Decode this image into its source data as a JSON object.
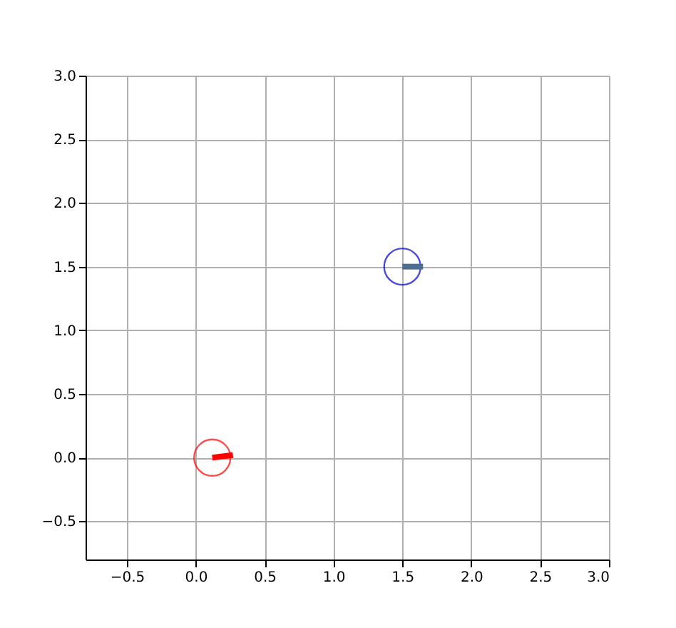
{
  "chart_data": {
    "type": "scatter",
    "series": [
      {
        "color": "#ff0000",
        "x": [
          0.12
        ],
        "values": [
          0.0
        ],
        "marker": "circle"
      },
      {
        "color": "#0000cc",
        "x": [
          1.5
        ],
        "values": [
          1.5
        ],
        "marker": "circle"
      },
      {
        "type": "line",
        "color": "#ff0000",
        "x": [
          0.12,
          0.27
        ],
        "values": [
          0.0,
          0.02
        ],
        "marker": "none"
      },
      {
        "type": "line",
        "color": "#4f6d8f",
        "x": [
          1.5,
          1.65
        ],
        "values": [
          1.5,
          1.5
        ],
        "marker": "none"
      }
    ],
    "xlim": [
      -0.8,
      3.0
    ],
    "ylim": [
      -0.8,
      3.0
    ],
    "xticks": [
      -0.5,
      {
        "value": 0,
        "label": "0.0"
      },
      0.5,
      {
        "value": 1,
        "label": "1.0"
      },
      1.5,
      {
        "value": 2,
        "label": "2.0"
      },
      2.5,
      {
        "value": 3,
        "label": "3.0"
      }
    ],
    "yticks": [
      -0.5,
      {
        "value": 0,
        "label": "0.0"
      },
      0.5,
      {
        "value": 1,
        "label": "1.0"
      },
      1.5,
      {
        "value": 2,
        "label": "2.0"
      },
      2.5,
      {
        "value": 3,
        "label": "3.0"
      }
    ],
    "grid": true
  }
}
